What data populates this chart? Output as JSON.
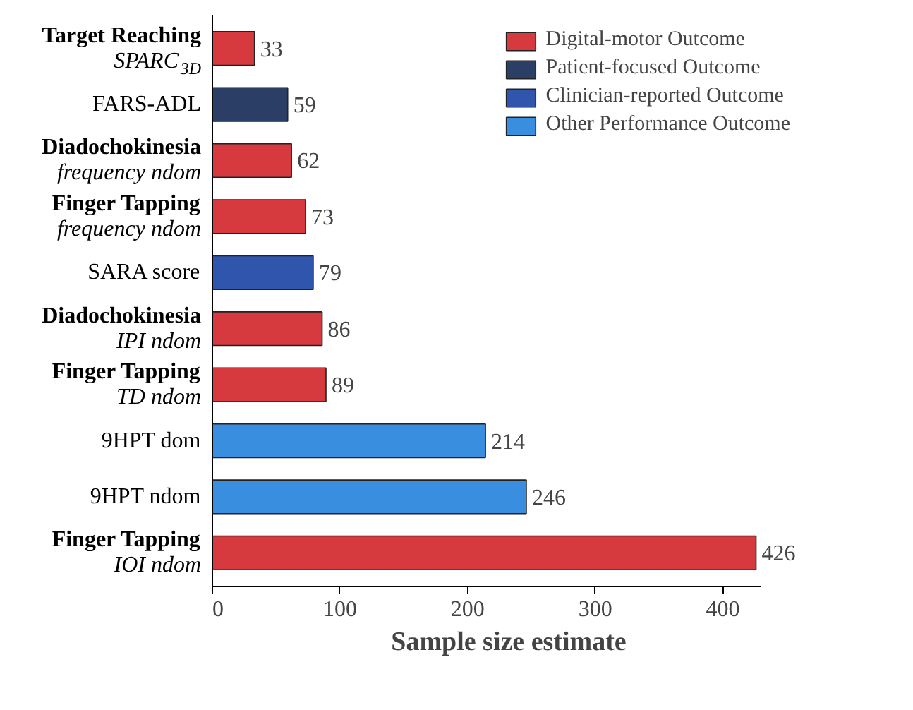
{
  "chart_data": {
    "type": "bar",
    "orientation": "horizontal",
    "xlabel": "Sample size estimate",
    "categories": [
      "Target Reaching\nSPARC$_{3D}$",
      "FARS-ADL",
      "Diadochokinesia\nfrequency ndom",
      "Finger Tapping\nfrequency ndom",
      "SARA score",
      "Diadochokinesia\nIPI ndom",
      "Finger Tapping\nTD ndom",
      "9HPT dom",
      "9HPT ndom",
      "Finger Tapping\nIOI ndom"
    ],
    "series": [
      {
        "name": "Digital-motor Outcome",
        "color": "#d63a3f",
        "values": [
          33,
          null,
          62,
          73,
          null,
          86,
          89,
          null,
          null,
          426
        ]
      },
      {
        "name": "Patient-focused Outcome",
        "color": "#2b3f66",
        "values": [
          null,
          59,
          null,
          null,
          null,
          null,
          null,
          null,
          null,
          null
        ]
      },
      {
        "name": "Clinician-reported Outcome",
        "color": "#2f55ad",
        "values": [
          null,
          null,
          null,
          null,
          79,
          null,
          null,
          null,
          null,
          null
        ]
      },
      {
        "name": "Other Performance Outcome",
        "color": "#3a8ee0",
        "values": [
          null,
          null,
          null,
          null,
          null,
          null,
          null,
          214,
          246,
          null
        ]
      }
    ],
    "xlim": [
      0,
      430
    ],
    "xticks": [
      0,
      100,
      200,
      300,
      400
    ],
    "data_labels": true,
    "legend": "top right",
    "grid": false
  }
}
